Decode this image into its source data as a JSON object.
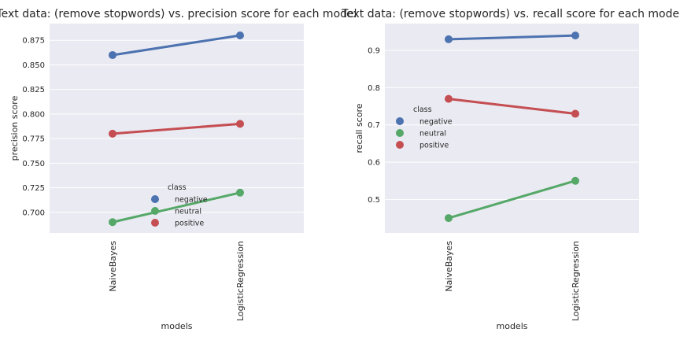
{
  "chart_data": [
    {
      "type": "line",
      "title": "Text data: (remove stopwords) vs. precision score for each model",
      "xlabel": "models",
      "ylabel": "precision score",
      "categories": [
        "NaiveBayes",
        "LogisticRegression"
      ],
      "ylim": [
        0.679,
        0.892
      ],
      "yticks": [
        "0.700",
        "0.725",
        "0.750",
        "0.775",
        "0.800",
        "0.825",
        "0.850",
        "0.875"
      ],
      "grid": true,
      "legend": {
        "title": "class",
        "placement": "lower-center"
      },
      "series": [
        {
          "name": "negative",
          "values": [
            0.86,
            0.88
          ],
          "color": "#4c72b0"
        },
        {
          "name": "neutral",
          "values": [
            0.69,
            0.72
          ],
          "color": "#55a868"
        },
        {
          "name": "positive",
          "values": [
            0.78,
            0.79
          ],
          "color": "#c44e52"
        }
      ]
    },
    {
      "type": "line",
      "title": "Text data: (remove stopwords) vs. recall score for each model",
      "xlabel": "models",
      "ylabel": "recall score",
      "categories": [
        "NaiveBayes",
        "LogisticRegression"
      ],
      "ylim": [
        0.41,
        0.972
      ],
      "yticks": [
        "0.5",
        "0.6",
        "0.7",
        "0.8",
        "0.9"
      ],
      "grid": true,
      "legend": {
        "title": "class",
        "placement": "center-left"
      },
      "series": [
        {
          "name": "negative",
          "values": [
            0.93,
            0.94
          ],
          "color": "#4c72b0"
        },
        {
          "name": "neutral",
          "values": [
            0.45,
            0.55
          ],
          "color": "#55a868"
        },
        {
          "name": "positive",
          "values": [
            0.77,
            0.73
          ],
          "color": "#c44e52"
        }
      ]
    }
  ]
}
